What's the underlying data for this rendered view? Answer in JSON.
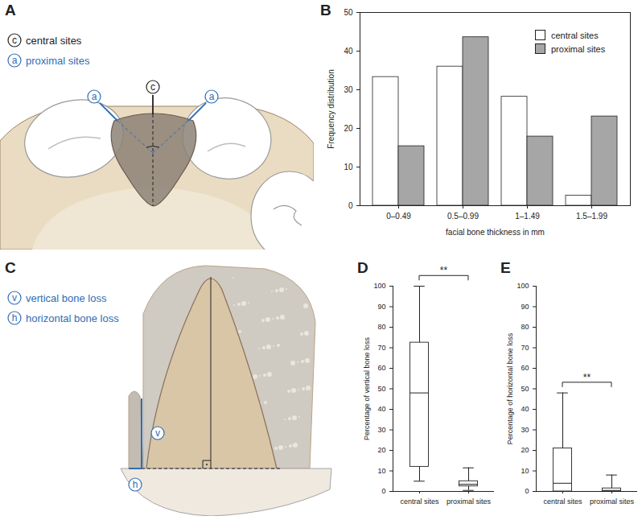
{
  "chart_data": [
    {
      "panel": "B",
      "type": "bar",
      "x_label": "facial bone thickness in mm",
      "y_label": "Frequency distribution",
      "categories": [
        "0–0.49",
        "0.5–0.99",
        "1–1.49",
        "1.5–1.99"
      ],
      "series": [
        {
          "name": "central sites",
          "color": "#ffffff",
          "values": [
            33.3,
            36,
            28.2,
            2.6
          ]
        },
        {
          "name": "proximal sites",
          "color": "#a6a6a6",
          "values": [
            15.4,
            43.6,
            17.9,
            23.1
          ]
        }
      ],
      "ylim": [
        0,
        50
      ],
      "yticks": [
        0,
        10,
        20,
        30,
        40,
        50
      ],
      "legend": "upper right"
    },
    {
      "panel": "D",
      "type": "box",
      "y_label": "Percentage of vertical bone loss",
      "categories": [
        "central sites",
        "proximal sites"
      ],
      "boxes": [
        {
          "min": 5,
          "q1": 12,
          "median": 48,
          "q3": 72.5,
          "max": 100
        },
        {
          "min": 0.5,
          "q1": 2.5,
          "median": 3.5,
          "q3": 5,
          "max": 11.5
        }
      ],
      "color": "#ffffff",
      "ylim": [
        0,
        100
      ],
      "yticks": [
        0,
        10,
        20,
        30,
        40,
        50,
        60,
        70,
        80,
        90,
        100
      ],
      "annotations": [
        {
          "text": "**",
          "between": [
            "central sites",
            "proximal sites"
          ]
        }
      ]
    },
    {
      "panel": "E",
      "type": "box",
      "y_label": "Percentage of horizontal bone loss",
      "categories": [
        "central sites",
        "proximal sites"
      ],
      "boxes": [
        {
          "min": 0,
          "q1": 0,
          "median": 4,
          "q3": 21,
          "max": 48
        },
        {
          "min": 0,
          "q1": 0,
          "median": 0.5,
          "q3": 1.5,
          "max": 8
        }
      ],
      "color": "#ffffff",
      "ylim": [
        0,
        100
      ],
      "yticks": [
        0,
        10,
        20,
        30,
        40,
        50,
        60,
        70,
        80,
        90,
        100
      ],
      "annotations": [
        {
          "text": "**",
          "between": [
            "central sites",
            "proximal sites"
          ]
        }
      ]
    }
  ],
  "diagrams": [
    {
      "panel": "A",
      "legend": [
        {
          "symbol": "c",
          "text": "central sites",
          "color": "#222222"
        },
        {
          "symbol": "a",
          "text": "proximal sites",
          "color": "#2f6db5"
        }
      ],
      "markers": [
        "a",
        "c",
        "a"
      ]
    },
    {
      "panel": "C",
      "legend": [
        {
          "symbol": "v",
          "text": "vertical bone loss",
          "color": "#2f6db5"
        },
        {
          "symbol": "h",
          "text": "horizontal bone loss",
          "color": "#2f6db5"
        }
      ],
      "markers": [
        "v",
        "h"
      ]
    }
  ]
}
